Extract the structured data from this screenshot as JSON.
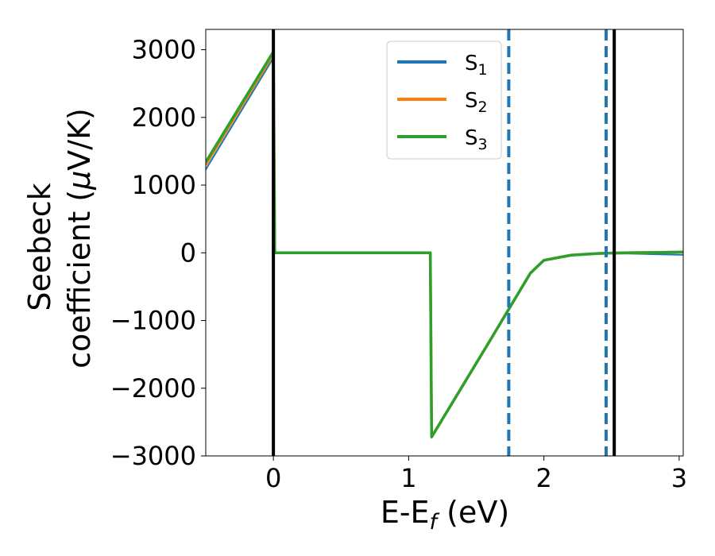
{
  "chart_data": {
    "type": "line",
    "title": "",
    "xlabel": "E-E",
    "xlabel_sub": "f",
    "xlabel_unit": " (eV)",
    "ylabel_line1": "Seebeck",
    "ylabel_line2": "coefficient  (",
    "ylabel_mu": "μ",
    "ylabel_unit": "V/K)",
    "xlim": [
      -0.5,
      3.03
    ],
    "ylim": [
      -3000,
      3300
    ],
    "xticks": [
      0,
      1,
      2,
      3
    ],
    "xtick_labels": [
      "0",
      "1",
      "2",
      "3"
    ],
    "yticks": [
      3000,
      2000,
      1000,
      0,
      -1000,
      -2000,
      -3000
    ],
    "ytick_labels": [
      "3000",
      "2000",
      "1000",
      "0",
      "−1000",
      "−2000",
      "−3000"
    ],
    "legend_position": "top-center",
    "grid": false,
    "series": [
      {
        "name": "S",
        "name_sub": "1",
        "color": "#1f77b4",
        "x": [
          -0.5,
          0.0,
          0.01,
          1.16,
          1.17,
          1.6,
          1.9,
          2.0,
          2.2,
          2.4,
          2.6,
          2.8,
          3.03
        ],
        "y": [
          1230,
          2880,
          0,
          0,
          -2720,
          -1300,
          -300,
          -110,
          -40,
          -15,
          -10,
          -20,
          -30
        ]
      },
      {
        "name": "S",
        "name_sub": "2",
        "color": "#ff7f0e",
        "x": [
          -0.5,
          0.0,
          0.01,
          1.16,
          1.17,
          1.6,
          1.9,
          2.0,
          2.2,
          2.4,
          2.6,
          2.8,
          3.03
        ],
        "y": [
          1300,
          2940,
          0,
          0,
          -2720,
          -1300,
          -300,
          -110,
          -35,
          -10,
          0,
          5,
          10
        ]
      },
      {
        "name": "S",
        "name_sub": "3",
        "color": "#2ca02c",
        "x": [
          -0.5,
          0.0,
          0.01,
          1.16,
          1.17,
          1.6,
          1.9,
          2.0,
          2.2,
          2.4,
          2.6,
          2.8,
          3.03
        ],
        "y": [
          1340,
          2970,
          0,
          0,
          -2720,
          -1300,
          -300,
          -110,
          -35,
          -10,
          0,
          5,
          10
        ]
      }
    ],
    "vertical_lines": [
      {
        "x": 0.0,
        "style": "solid",
        "color": "#000000"
      },
      {
        "x": 1.74,
        "style": "dashed",
        "color": "#1f77b4"
      },
      {
        "x": 2.46,
        "style": "dashed",
        "color": "#1f77b4"
      },
      {
        "x": 2.52,
        "style": "solid",
        "color": "#000000"
      }
    ]
  }
}
